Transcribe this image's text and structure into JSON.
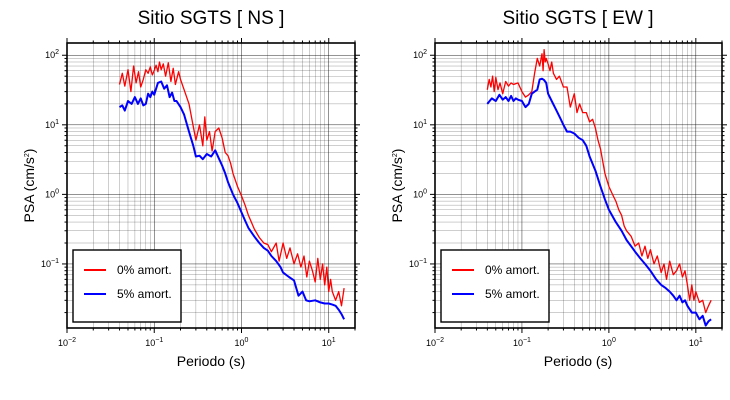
{
  "chart_data": [
    {
      "type": "line",
      "title": "Sitio SGTS [ NS ]",
      "xlabel": "Periodo (s)",
      "ylabel_prefix": "PSA (cm/s",
      "ylabel_exp": "2",
      "ylabel_suffix": ")",
      "xscale": "log",
      "yscale": "log",
      "xlim": [
        0.01,
        20
      ],
      "ylim": [
        0.012,
        150
      ],
      "x_ticks": [
        {
          "base": "10",
          "exp": "−2",
          "value": 0.01
        },
        {
          "base": "10",
          "exp": "−1",
          "value": 0.1
        },
        {
          "base": "10",
          "exp": "0",
          "value": 1
        },
        {
          "base": "10",
          "exp": "1",
          "value": 10
        }
      ],
      "y_ticks": [
        {
          "base": "10",
          "exp": "−1",
          "value": 0.1
        },
        {
          "base": "10",
          "exp": "0",
          "value": 1
        },
        {
          "base": "10",
          "exp": "1",
          "value": 10
        },
        {
          "base": "10",
          "exp": "2",
          "value": 100
        }
      ],
      "grid": true,
      "legend_position": "bottom-left",
      "series": [
        {
          "name": "0% amort.",
          "color": "#ff0000",
          "x": [
            0.04,
            0.043,
            0.046,
            0.05,
            0.054,
            0.058,
            0.062,
            0.066,
            0.07,
            0.075,
            0.08,
            0.085,
            0.09,
            0.095,
            0.1,
            0.105,
            0.11,
            0.115,
            0.12,
            0.127,
            0.135,
            0.145,
            0.155,
            0.165,
            0.175,
            0.19,
            0.2,
            0.22,
            0.25,
            0.27,
            0.3,
            0.33,
            0.36,
            0.38,
            0.4,
            0.43,
            0.46,
            0.5,
            0.55,
            0.6,
            0.65,
            0.7,
            0.75,
            0.8,
            0.9,
            1.0,
            1.1,
            1.2,
            1.4,
            1.6,
            1.8,
            2.0,
            2.2,
            2.5,
            2.7,
            3.0,
            3.3,
            3.6,
            4.0,
            4.4,
            4.8,
            5.2,
            5.6,
            6.0,
            6.5,
            7.0,
            7.5,
            8.0,
            8.5,
            9.0,
            9.5,
            10,
            10.5,
            11,
            12,
            13,
            14,
            15
          ],
          "y": [
            38,
            55,
            36,
            62,
            30,
            70,
            40,
            58,
            35,
            45,
            62,
            55,
            68,
            52,
            60,
            72,
            58,
            80,
            62,
            75,
            50,
            78,
            42,
            65,
            38,
            58,
            45,
            32,
            20,
            12,
            6,
            10,
            5,
            13,
            6,
            8,
            4.2,
            8,
            9,
            6.5,
            4,
            3.6,
            2.8,
            2.0,
            1.3,
            0.95,
            0.7,
            0.5,
            0.32,
            0.24,
            0.2,
            0.19,
            0.15,
            0.2,
            0.11,
            0.2,
            0.12,
            0.17,
            0.1,
            0.14,
            0.09,
            0.13,
            0.065,
            0.11,
            0.08,
            0.055,
            0.12,
            0.06,
            0.1,
            0.05,
            0.09,
            0.04,
            0.06,
            0.04,
            0.03,
            0.04,
            0.025,
            0.045
          ]
        },
        {
          "name": "5% amort.",
          "color": "#0000ff",
          "x": [
            0.04,
            0.043,
            0.046,
            0.05,
            0.055,
            0.06,
            0.065,
            0.07,
            0.075,
            0.08,
            0.085,
            0.09,
            0.095,
            0.1,
            0.11,
            0.12,
            0.13,
            0.14,
            0.15,
            0.16,
            0.17,
            0.18,
            0.2,
            0.22,
            0.25,
            0.28,
            0.3,
            0.33,
            0.36,
            0.4,
            0.45,
            0.5,
            0.55,
            0.6,
            0.65,
            0.7,
            0.8,
            0.9,
            1.0,
            1.1,
            1.2,
            1.4,
            1.6,
            1.8,
            2.0,
            2.2,
            2.5,
            2.8,
            3.0,
            3.5,
            4.0,
            4.5,
            5.0,
            5.5,
            6.0,
            7.0,
            8.0,
            9.0,
            10,
            11,
            12,
            13,
            14,
            15
          ],
          "y": [
            18,
            19,
            16,
            22,
            20,
            25,
            20,
            24,
            19,
            20,
            28,
            25,
            30,
            27,
            40,
            42,
            33,
            37,
            25,
            29,
            22,
            22,
            18,
            14,
            8,
            5,
            3.5,
            3.6,
            3.2,
            3.8,
            3.5,
            4.3,
            3.3,
            2.6,
            2.0,
            1.5,
            1.0,
            0.75,
            0.55,
            0.42,
            0.33,
            0.25,
            0.2,
            0.17,
            0.155,
            0.13,
            0.11,
            0.09,
            0.075,
            0.065,
            0.058,
            0.035,
            0.04,
            0.03,
            0.029,
            0.03,
            0.028,
            0.027,
            0.027,
            0.026,
            0.025,
            0.022,
            0.019,
            0.016
          ]
        }
      ]
    },
    {
      "type": "line",
      "title": "Sitio SGTS [ EW ]",
      "xlabel": "Periodo (s)",
      "ylabel_prefix": "PSA (cm/s",
      "ylabel_exp": "2",
      "ylabel_suffix": ")",
      "xscale": "log",
      "yscale": "log",
      "xlim": [
        0.01,
        20
      ],
      "ylim": [
        0.012,
        150
      ],
      "x_ticks": [
        {
          "base": "10",
          "exp": "−2",
          "value": 0.01
        },
        {
          "base": "10",
          "exp": "−1",
          "value": 0.1
        },
        {
          "base": "10",
          "exp": "0",
          "value": 1
        },
        {
          "base": "10",
          "exp": "1",
          "value": 10
        }
      ],
      "y_ticks": [
        {
          "base": "10",
          "exp": "−1",
          "value": 0.1
        },
        {
          "base": "10",
          "exp": "0",
          "value": 1
        },
        {
          "base": "10",
          "exp": "1",
          "value": 10
        },
        {
          "base": "10",
          "exp": "2",
          "value": 100
        }
      ],
      "grid": true,
      "legend_position": "bottom-left",
      "series": [
        {
          "name": "0% amort.",
          "color": "#ff0000",
          "x": [
            0.04,
            0.042,
            0.044,
            0.046,
            0.048,
            0.05,
            0.053,
            0.056,
            0.06,
            0.065,
            0.07,
            0.075,
            0.08,
            0.09,
            0.1,
            0.11,
            0.12,
            0.13,
            0.14,
            0.15,
            0.16,
            0.17,
            0.175,
            0.18,
            0.185,
            0.19,
            0.2,
            0.21,
            0.22,
            0.23,
            0.25,
            0.27,
            0.3,
            0.33,
            0.36,
            0.4,
            0.43,
            0.46,
            0.5,
            0.55,
            0.6,
            0.65,
            0.7,
            0.75,
            0.8,
            0.9,
            1.0,
            1.1,
            1.2,
            1.3,
            1.4,
            1.5,
            1.6,
            1.8,
            2.0,
            2.2,
            2.4,
            2.6,
            2.8,
            3.0,
            3.3,
            3.6,
            4.0,
            4.3,
            4.6,
            5.0,
            5.5,
            6.0,
            6.5,
            7.0,
            7.5,
            8.0,
            8.5,
            9.0,
            9.5,
            10,
            11,
            12,
            13,
            14,
            15
          ],
          "y": [
            32,
            45,
            35,
            50,
            30,
            48,
            32,
            40,
            28,
            42,
            36,
            40,
            38,
            40,
            30,
            25,
            27,
            30,
            55,
            90,
            70,
            105,
            60,
            120,
            80,
            90,
            75,
            60,
            80,
            55,
            45,
            50,
            35,
            35,
            18,
            28,
            15,
            20,
            15,
            15,
            11,
            12,
            9,
            6,
            4.5,
            2.0,
            1.3,
            1.0,
            0.8,
            0.6,
            0.5,
            0.35,
            0.3,
            0.25,
            0.18,
            0.2,
            0.13,
            0.18,
            0.12,
            0.16,
            0.1,
            0.13,
            0.075,
            0.1,
            0.06,
            0.11,
            0.07,
            0.08,
            0.1,
            0.065,
            0.08,
            0.05,
            0.03,
            0.05,
            0.03,
            0.04,
            0.028,
            0.03,
            0.02,
            0.025,
            0.03
          ]
        },
        {
          "name": "5% amort.",
          "color": "#0000ff",
          "x": [
            0.04,
            0.045,
            0.05,
            0.055,
            0.06,
            0.065,
            0.07,
            0.075,
            0.08,
            0.085,
            0.09,
            0.1,
            0.11,
            0.12,
            0.13,
            0.14,
            0.15,
            0.16,
            0.17,
            0.18,
            0.19,
            0.2,
            0.22,
            0.25,
            0.28,
            0.3,
            0.33,
            0.36,
            0.4,
            0.45,
            0.5,
            0.55,
            0.6,
            0.7,
            0.8,
            0.9,
            1.0,
            1.2,
            1.4,
            1.6,
            1.8,
            2.0,
            2.3,
            2.6,
            3.0,
            3.5,
            4.0,
            4.5,
            5.0,
            5.5,
            6.0,
            6.5,
            7.0,
            7.5,
            8.0,
            9.0,
            10,
            11,
            12,
            13,
            14,
            15
          ],
          "y": [
            20,
            24,
            22,
            27,
            23,
            25,
            22,
            26,
            22,
            24,
            23,
            22,
            18,
            20,
            28,
            30,
            32,
            45,
            46,
            44,
            40,
            28,
            22,
            16,
            12,
            10,
            8,
            8,
            7.5,
            6.5,
            6,
            5,
            3.5,
            2.2,
            1.3,
            0.85,
            0.6,
            0.4,
            0.3,
            0.22,
            0.18,
            0.15,
            0.12,
            0.1,
            0.08,
            0.06,
            0.05,
            0.045,
            0.04,
            0.035,
            0.03,
            0.035,
            0.028,
            0.03,
            0.025,
            0.02,
            0.02,
            0.016,
            0.018,
            0.013,
            0.015,
            0.016
          ]
        }
      ]
    }
  ]
}
